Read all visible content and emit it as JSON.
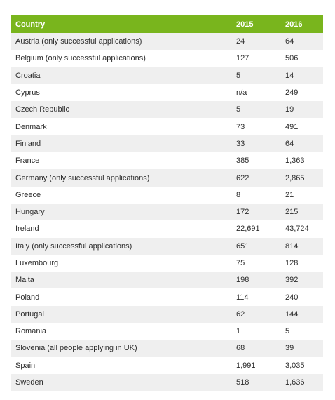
{
  "table": {
    "header_color": "#79b51d",
    "stripe_color": "#efefef",
    "columns": [
      "Country",
      "2015",
      "2016"
    ],
    "rows": [
      {
        "country": "Austria (only successful applications)",
        "y2015": "24",
        "y2016": "64"
      },
      {
        "country": "Belgium (only successful applications)",
        "y2015": "127",
        "y2016": "506"
      },
      {
        "country": "Croatia",
        "y2015": "5",
        "y2016": "14"
      },
      {
        "country": "Cyprus",
        "y2015": "n/a",
        "y2016": "249"
      },
      {
        "country": "Czech Republic",
        "y2015": "5",
        "y2016": "19"
      },
      {
        "country": "Denmark",
        "y2015": "73",
        "y2016": "491"
      },
      {
        "country": "Finland",
        "y2015": "33",
        "y2016": "64"
      },
      {
        "country": "France",
        "y2015": "385",
        "y2016": "1,363"
      },
      {
        "country": "Germany (only successful applications)",
        "y2015": "622",
        "y2016": "2,865"
      },
      {
        "country": "Greece",
        "y2015": "8",
        "y2016": "21"
      },
      {
        "country": "Hungary",
        "y2015": "172",
        "y2016": "215"
      },
      {
        "country": "Ireland",
        "y2015": "22,691",
        "y2016": "43,724"
      },
      {
        "country": "Italy (only successful applications)",
        "y2015": "651",
        "y2016": "814"
      },
      {
        "country": "Luxembourg",
        "y2015": "75",
        "y2016": "128"
      },
      {
        "country": "Malta",
        "y2015": "198",
        "y2016": "392"
      },
      {
        "country": "Poland",
        "y2015": "114",
        "y2016": "240"
      },
      {
        "country": "Portugal",
        "y2015": "62",
        "y2016": "144"
      },
      {
        "country": "Romania",
        "y2015": "1",
        "y2016": "5"
      },
      {
        "country": "Slovenia (all people applying in UK)",
        "y2015": "68",
        "y2016": "39"
      },
      {
        "country": "Spain",
        "y2015": "1,991",
        "y2016": "3,035"
      },
      {
        "country": "Sweden",
        "y2015": "518",
        "y2016": "1,636"
      }
    ]
  }
}
